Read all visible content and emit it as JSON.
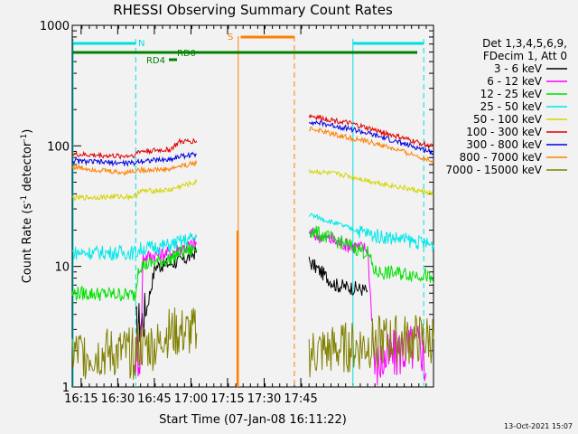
{
  "chart_data": {
    "type": "line",
    "title": "RHESSI Observing Summary Count Rates",
    "xlabel": "Start Time (07-Jan-08 16:11:22)",
    "ylabel_main": "Count Rate (s",
    "ylabel_sup1": "-1",
    "ylabel_mid": " detector",
    "ylabel_sup2": "-1",
    "ylabel_end": ")",
    "y_scale": "log",
    "ylim": [
      1,
      1000
    ],
    "x_start": "16:11:22",
    "x_range_min": [
      0,
      148
    ],
    "x_tick_labels": [
      "16:15",
      "16:30",
      "16:45",
      "17:00",
      "17:15",
      "17:30",
      "17:45"
    ],
    "y_tick_labels": [
      "1",
      "10",
      "100",
      "1000"
    ],
    "timestamp": "13-Oct-2021 15:07",
    "legend_header": [
      "Det 1,3,4,5,6,9,",
      "FDecim 1, Att 0"
    ],
    "flag_labels": {
      "N": "N",
      "S": "S",
      "RD0": "RD0",
      "RD4": "RD4"
    },
    "series": [
      {
        "name": "3 - 6 keV",
        "color": "#000000",
        "segments": [
          [
            [
              26,
              3.0
            ],
            [
              30,
              4
            ],
            [
              34,
              10
            ],
            [
              44,
              11
            ],
            [
              48,
              12
            ],
            [
              51,
              13.5
            ]
          ],
          [
            [
              97,
              11
            ],
            [
              108,
              7
            ],
            [
              118,
              6.5
            ],
            [
              121,
              6.3
            ]
          ]
        ]
      },
      {
        "name": "6 - 12 keV",
        "color": "#ff00ff",
        "segments": [
          [
            [
              26,
              1.9
            ],
            [
              28,
              1.9
            ],
            [
              29,
              12
            ],
            [
              40,
              13
            ],
            [
              44,
              14
            ],
            [
              51,
              15.5
            ]
          ],
          [
            [
              97,
              19
            ],
            [
              113,
              15
            ],
            [
              121,
              14
            ],
            [
              124,
              1.5
            ],
            [
              135,
              2.0
            ],
            [
              143,
              2.2
            ],
            [
              145,
              1.3
            ]
          ]
        ]
      },
      {
        "name": "12 - 25 keV",
        "color": "#00e000",
        "segments": [
          [
            [
              0,
              6.0
            ],
            [
              26,
              5.8
            ],
            [
              27,
              10
            ],
            [
              40,
              11.5
            ],
            [
              44,
              13
            ],
            [
              51,
              14
            ]
          ],
          [
            [
              97,
              20
            ],
            [
              113,
              15
            ],
            [
              121,
              13
            ],
            [
              124,
              9
            ],
            [
              145,
              8.5
            ],
            [
              148,
              7.2
            ]
          ]
        ]
      },
      {
        "name": "25 - 50 keV",
        "color": "#00e8e8",
        "segments": [
          [
            [
              0,
              13
            ],
            [
              26,
              13
            ],
            [
              28,
              14
            ],
            [
              40,
              15
            ],
            [
              44,
              16
            ],
            [
              51,
              17.5
            ]
          ],
          [
            [
              97,
              27
            ],
            [
              113,
              21
            ],
            [
              124,
              18
            ],
            [
              134,
              17
            ],
            [
              148,
              15
            ]
          ]
        ]
      },
      {
        "name": "50 - 100 keV",
        "color": "#d4d400",
        "segments": [
          [
            [
              0,
              37
            ],
            [
              20,
              38
            ],
            [
              26,
              38
            ],
            [
              27,
              42
            ],
            [
              40,
              43
            ],
            [
              44,
              46
            ],
            [
              51,
              50
            ]
          ],
          [
            [
              97,
              62
            ],
            [
              112,
              57
            ],
            [
              124,
              50
            ],
            [
              148,
              40
            ]
          ]
        ]
      },
      {
        "name": "100 - 300 keV",
        "color": "#e00000",
        "segments": [
          [
            [
              0,
              85
            ],
            [
              20,
              82
            ],
            [
              26,
              84
            ],
            [
              27,
              90
            ],
            [
              40,
              93
            ],
            [
              44,
              108
            ],
            [
              51,
              110
            ]
          ],
          [
            [
              97,
              178
            ],
            [
              113,
              155
            ],
            [
              124,
              135
            ],
            [
              148,
              98
            ]
          ]
        ]
      },
      {
        "name": "300 - 800 keV",
        "color": "#0000e0",
        "segments": [
          [
            [
              0,
              75
            ],
            [
              20,
              72
            ],
            [
              26,
              72
            ],
            [
              27,
              75
            ],
            [
              40,
              77
            ],
            [
              44,
              82
            ],
            [
              51,
              85
            ]
          ],
          [
            [
              97,
              160
            ],
            [
              113,
              140
            ],
            [
              124,
              122
            ],
            [
              148,
              88
            ]
          ]
        ]
      },
      {
        "name": "800 - 7000 keV",
        "color": "#ff8000",
        "segments": [
          [
            [
              0,
              67
            ],
            [
              20,
              60
            ],
            [
              26,
              62
            ],
            [
              27,
              63
            ],
            [
              40,
              64
            ],
            [
              44,
              68
            ],
            [
              51,
              72
            ]
          ],
          [
            [
              97,
              140
            ],
            [
              113,
              117
            ],
            [
              124,
              105
            ],
            [
              148,
              75
            ]
          ]
        ]
      },
      {
        "name": "7000 - 15000 keV",
        "color": "#808000",
        "segments": [
          [
            [
              0,
              1.9
            ],
            [
              20,
              1.9
            ],
            [
              26,
              1.9
            ],
            [
              27,
              2.2
            ],
            [
              36,
              2.2
            ],
            [
              37,
              2.8
            ],
            [
              51,
              2.8
            ]
          ],
          [
            [
              97,
              1.9
            ],
            [
              120,
              2.2
            ],
            [
              126,
              2.4
            ],
            [
              148,
              2.5
            ]
          ]
        ]
      }
    ]
  }
}
